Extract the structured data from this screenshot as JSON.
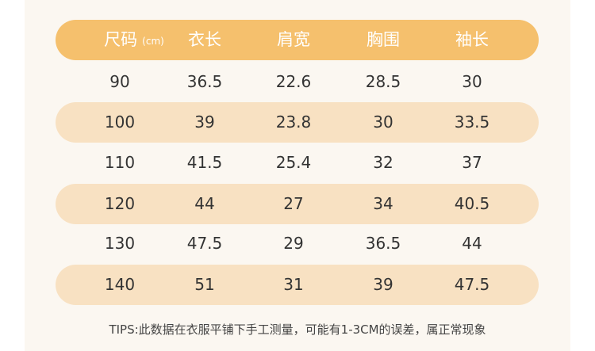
{
  "table": {
    "header": {
      "size_label": "尺码",
      "unit": "(cm)",
      "columns": [
        "衣长",
        "肩宽",
        "胸围",
        "袖长"
      ]
    },
    "rows": [
      [
        "90",
        "36.5",
        "22.6",
        "28.5",
        "30"
      ],
      [
        "100",
        "39",
        "23.8",
        "30",
        "33.5"
      ],
      [
        "110",
        "41.5",
        "25.4",
        "32",
        "37"
      ],
      [
        "120",
        "44",
        "27",
        "34",
        "40.5"
      ],
      [
        "130",
        "47.5",
        "29",
        "36.5",
        "44"
      ],
      [
        "140",
        "51",
        "31",
        "39",
        "47.5"
      ]
    ]
  },
  "tips": "TIPS:此数据在衣服平铺下手工测量，可能有1-3CM的误差，属正常现象",
  "colors": {
    "header_bg": "#f5c06d",
    "band_bg": "#f8e1c2",
    "panel_bg": "#fbf7f1"
  }
}
